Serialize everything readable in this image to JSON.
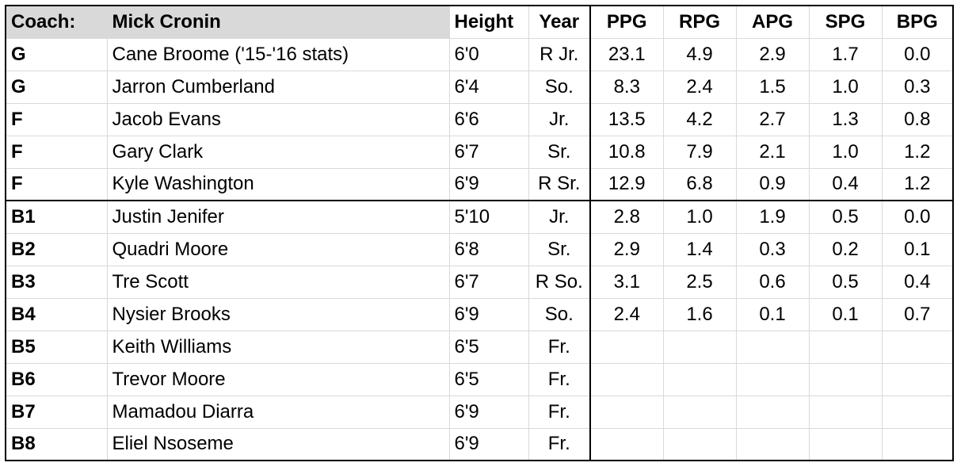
{
  "header": {
    "coach_label": "Coach:",
    "coach_name": "Mick Cronin",
    "height": "Height",
    "year": "Year",
    "ppg": "PPG",
    "rpg": "RPG",
    "apg": "APG",
    "spg": "SPG",
    "bpg": "BPG"
  },
  "rows": [
    {
      "pos": "G",
      "name": "Cane Broome ('15-'16 stats)",
      "height": "6'0",
      "year": "R Jr.",
      "ppg": "23.1",
      "rpg": "4.9",
      "apg": "2.9",
      "spg": "1.7",
      "bpg": "0.0"
    },
    {
      "pos": "G",
      "name": "Jarron Cumberland",
      "height": "6'4",
      "year": "So.",
      "ppg": "8.3",
      "rpg": "2.4",
      "apg": "1.5",
      "spg": "1.0",
      "bpg": "0.3"
    },
    {
      "pos": "F",
      "name": "Jacob Evans",
      "height": "6'6",
      "year": "Jr.",
      "ppg": "13.5",
      "rpg": "4.2",
      "apg": "2.7",
      "spg": "1.3",
      "bpg": "0.8"
    },
    {
      "pos": "F",
      "name": "Gary Clark",
      "height": "6'7",
      "year": "Sr.",
      "ppg": "10.8",
      "rpg": "7.9",
      "apg": "2.1",
      "spg": "1.0",
      "bpg": "1.2"
    },
    {
      "pos": "F",
      "name": "Kyle Washington",
      "height": "6'9",
      "year": "R Sr.",
      "ppg": "12.9",
      "rpg": "6.8",
      "apg": "0.9",
      "spg": "0.4",
      "bpg": "1.2"
    },
    {
      "pos": "B1",
      "name": "Justin Jenifer",
      "height": "5'10",
      "year": "Jr.",
      "ppg": "2.8",
      "rpg": "1.0",
      "apg": "1.9",
      "spg": "0.5",
      "bpg": "0.0"
    },
    {
      "pos": "B2",
      "name": "Quadri Moore",
      "height": "6'8",
      "year": "Sr.",
      "ppg": "2.9",
      "rpg": "1.4",
      "apg": "0.3",
      "spg": "0.2",
      "bpg": "0.1"
    },
    {
      "pos": "B3",
      "name": "Tre Scott",
      "height": "6'7",
      "year": "R So.",
      "ppg": "3.1",
      "rpg": "2.5",
      "apg": "0.6",
      "spg": "0.5",
      "bpg": "0.4"
    },
    {
      "pos": "B4",
      "name": "Nysier Brooks",
      "height": "6'9",
      "year": "So.",
      "ppg": "2.4",
      "rpg": "1.6",
      "apg": "0.1",
      "spg": "0.1",
      "bpg": "0.7"
    },
    {
      "pos": "B5",
      "name": "Keith Williams",
      "height": "6'5",
      "year": "Fr.",
      "ppg": "",
      "rpg": "",
      "apg": "",
      "spg": "",
      "bpg": ""
    },
    {
      "pos": "B6",
      "name": "Trevor Moore",
      "height": "6'5",
      "year": "Fr.",
      "ppg": "",
      "rpg": "",
      "apg": "",
      "spg": "",
      "bpg": ""
    },
    {
      "pos": "B7",
      "name": "Mamadou Diarra",
      "height": "6'9",
      "year": "Fr.",
      "ppg": "",
      "rpg": "",
      "apg": "",
      "spg": "",
      "bpg": ""
    },
    {
      "pos": "B8",
      "name": "Eliel Nsoseme",
      "height": "6'9",
      "year": "Fr.",
      "ppg": "",
      "rpg": "",
      "apg": "",
      "spg": "",
      "bpg": ""
    }
  ]
}
